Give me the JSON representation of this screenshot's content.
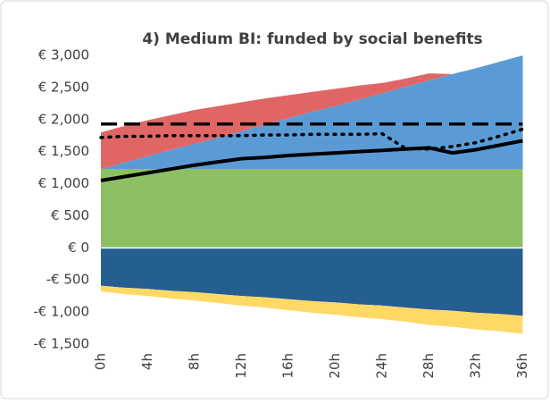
{
  "chart_data": {
    "type": "stacked_area_line",
    "title": "4) Medium BI: funded by social benefits",
    "categories": [
      "0h",
      null,
      "4h",
      null,
      "8h",
      null,
      "12h",
      null,
      "16h",
      null,
      "20h",
      null,
      "24h",
      null,
      "28h",
      null,
      "32h",
      null,
      "36h"
    ],
    "ylim": [
      -1500,
      3000
    ],
    "yticks": [
      {
        "value": -1500,
        "label": "-€ 1,500"
      },
      {
        "value": -1000,
        "label": "-€ 1,000"
      },
      {
        "value": -500,
        "label": "-€ 500"
      },
      {
        "value": 0,
        "label": "€ 0"
      },
      {
        "value": 500,
        "label": "€ 500"
      },
      {
        "value": 1000,
        "label": "€ 1,000"
      },
      {
        "value": 1500,
        "label": "€ 1,500"
      },
      {
        "value": 2000,
        "label": "€ 2,000"
      },
      {
        "value": 2500,
        "label": "€ 2,500"
      },
      {
        "value": 3000,
        "label": "€ 3,000"
      }
    ],
    "grid": false,
    "series": [
      {
        "kind": "area",
        "color": "#8cc063",
        "values": [
          1230,
          1230,
          1230,
          1230,
          1230,
          1230,
          1230,
          1230,
          1230,
          1230,
          1230,
          1230,
          1230,
          1230,
          1230,
          1230,
          1230,
          1230,
          1230
        ]
      },
      {
        "kind": "area",
        "color": "#5b9bd5",
        "values": [
          0,
          100,
          200,
          300,
          390,
          490,
          590,
          690,
          790,
          890,
          980,
          1080,
          1180,
          1280,
          1380,
          1480,
          1570,
          1670,
          1770
        ]
      },
      {
        "kind": "area",
        "color": "#e06666",
        "values": [
          570,
          570,
          560,
          540,
          530,
          490,
          450,
          410,
          360,
          310,
          270,
          220,
          160,
          130,
          110,
          0,
          0,
          0,
          0
        ]
      },
      {
        "kind": "area",
        "color": "#255e91",
        "values": [
          -590,
          -620,
          -640,
          -670,
          -690,
          -720,
          -750,
          -770,
          -800,
          -830,
          -850,
          -880,
          -900,
          -930,
          -960,
          -980,
          -1010,
          -1030,
          -1060
        ]
      },
      {
        "kind": "area",
        "color": "#ffd966",
        "values": [
          -90,
          -100,
          -110,
          -120,
          -130,
          -140,
          -150,
          -160,
          -170,
          -180,
          -190,
          -200,
          -210,
          -220,
          -240,
          -250,
          -260,
          -270,
          -280
        ]
      },
      {
        "kind": "line",
        "dash": "dashed",
        "color": "#000000",
        "values": [
          1930,
          1930,
          1930,
          1930,
          1930,
          1930,
          1930,
          1930,
          1930,
          1930,
          1930,
          1930,
          1930,
          1930,
          1930,
          1930,
          1930,
          1930,
          1930
        ]
      },
      {
        "kind": "line",
        "dash": "dotted",
        "color": "#000000",
        "values": [
          1720,
          1740,
          1740,
          1750,
          1750,
          1750,
          1750,
          1760,
          1760,
          1770,
          1770,
          1770,
          1780,
          1550,
          1540,
          1580,
          1640,
          1740,
          1850
        ]
      },
      {
        "kind": "line",
        "dash": "solid",
        "color": "#000000",
        "values": [
          1050,
          1110,
          1170,
          1230,
          1290,
          1340,
          1390,
          1410,
          1440,
          1460,
          1480,
          1500,
          1520,
          1540,
          1560,
          1480,
          1530,
          1600,
          1670
        ]
      }
    ]
  }
}
